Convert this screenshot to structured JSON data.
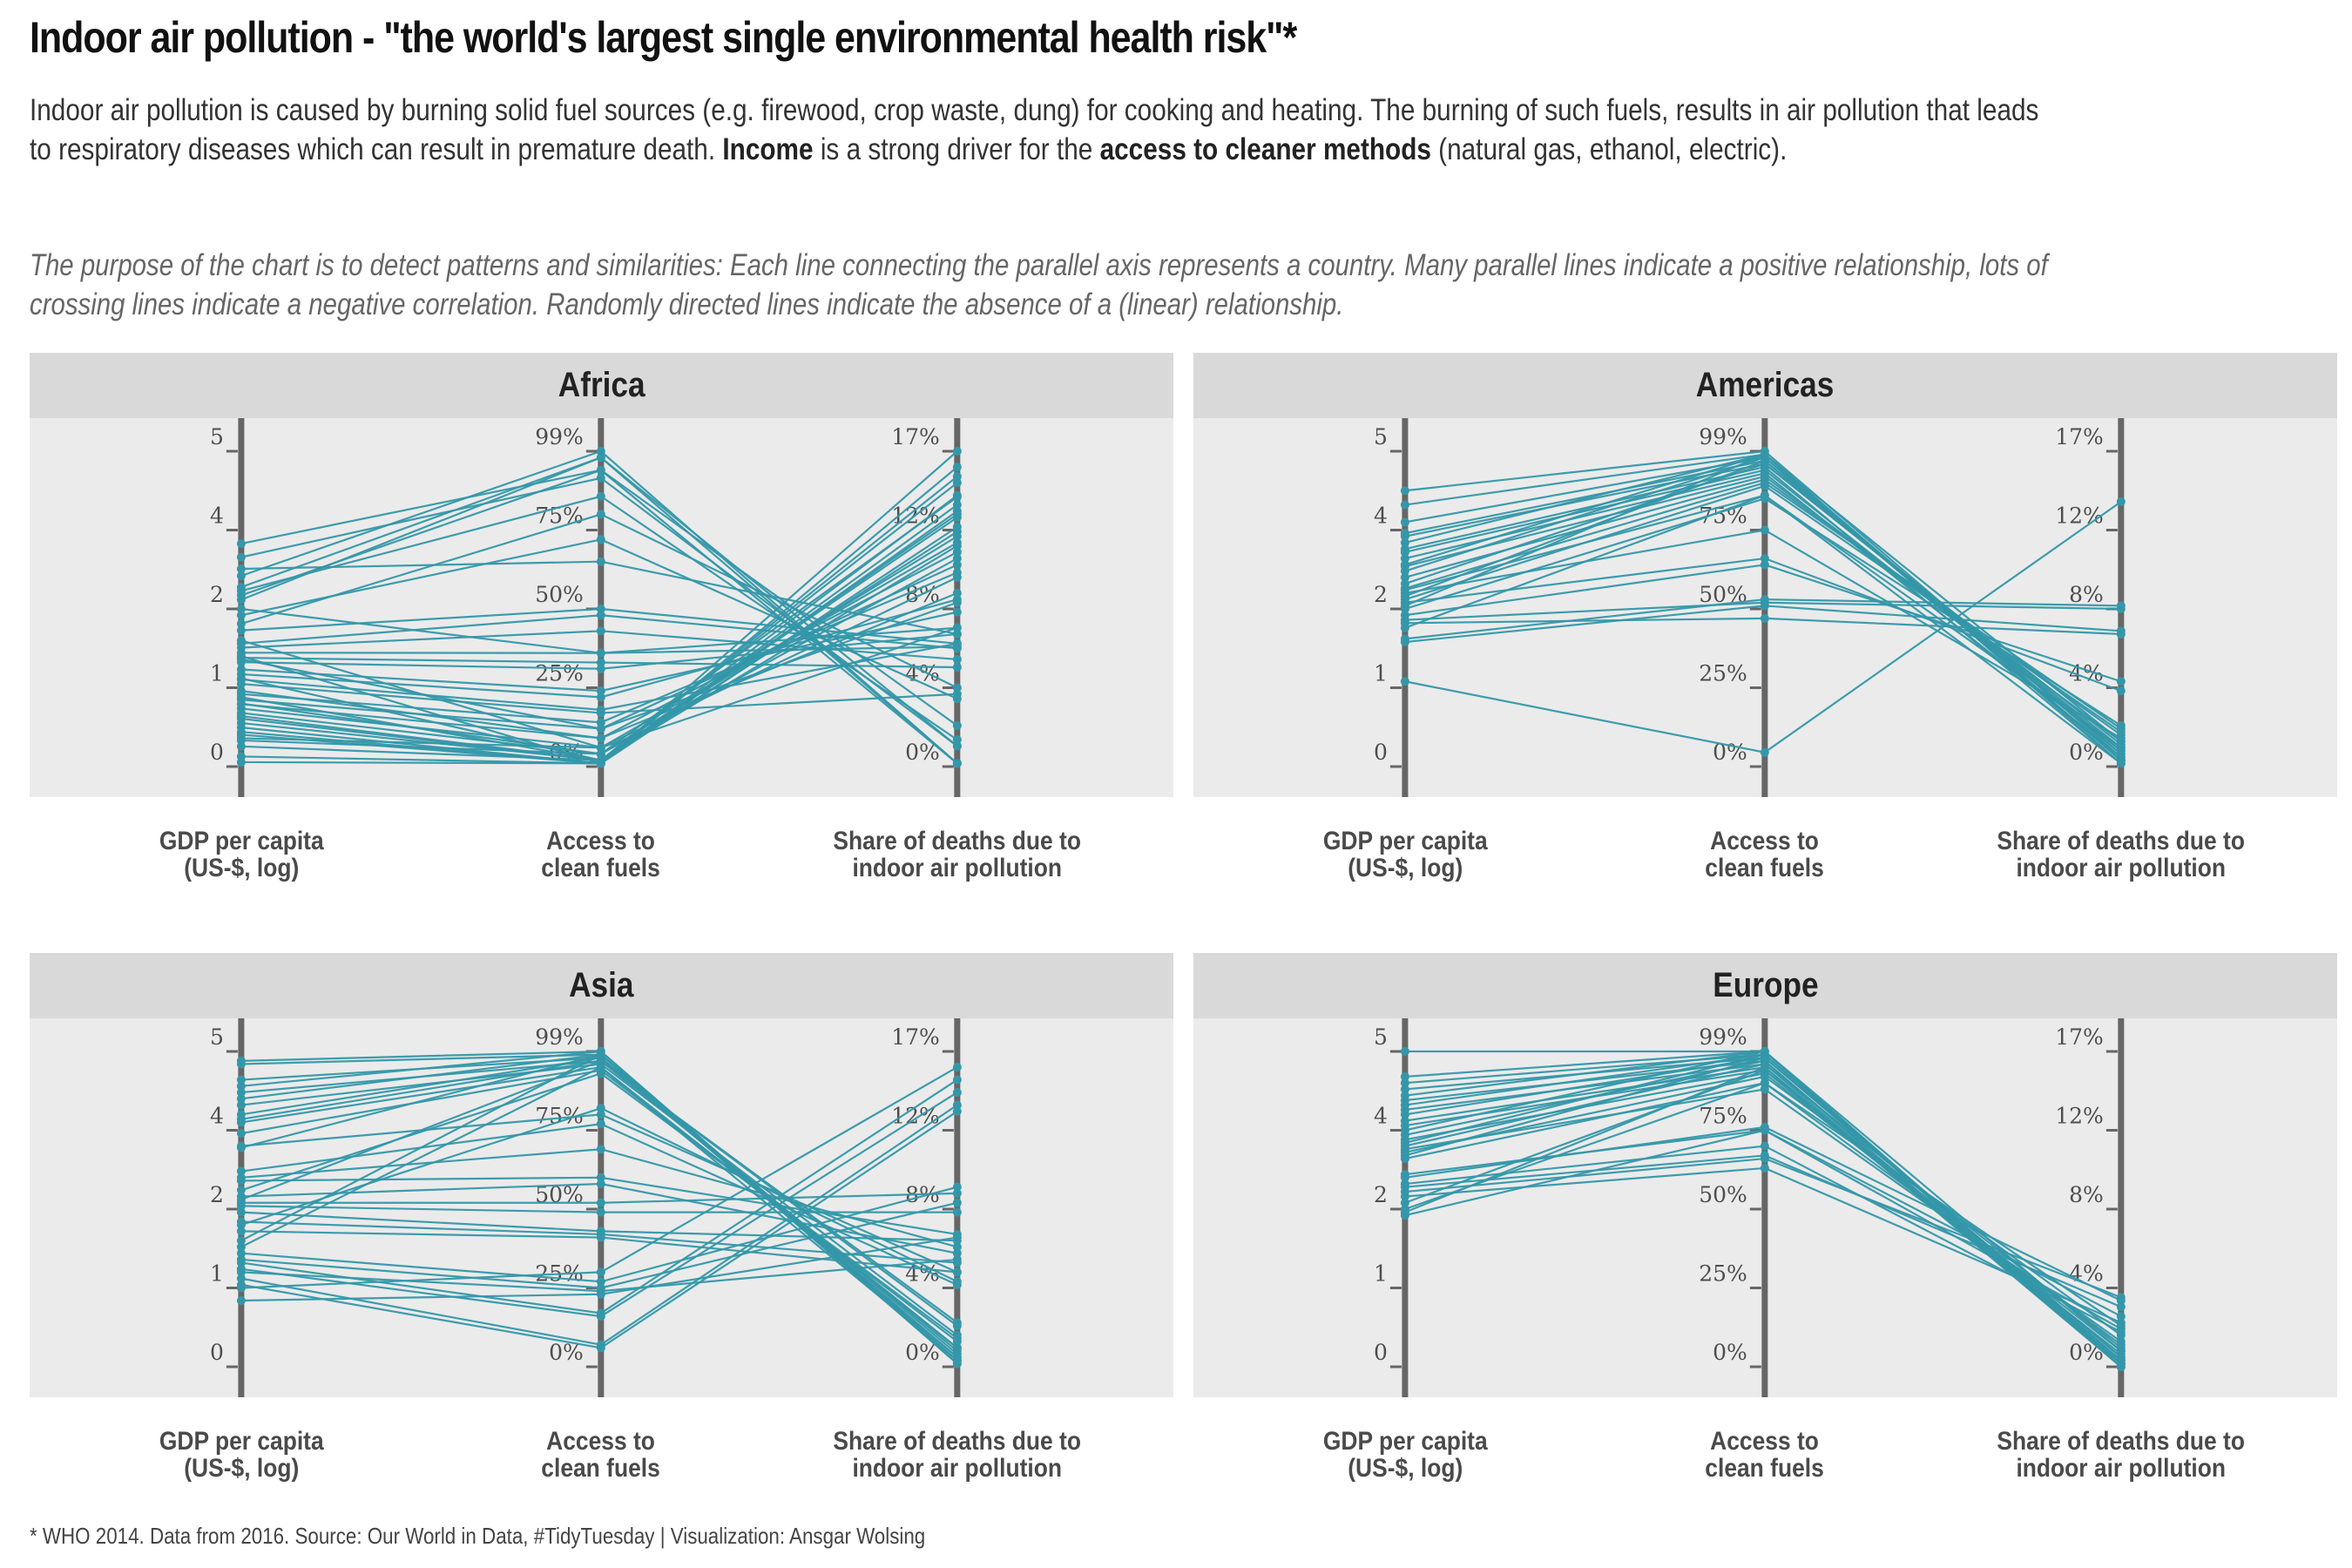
{
  "header": {
    "title": "Indoor air pollution - \"the world's largest single environmental health risk\"*",
    "subtitle_parts": [
      {
        "text": "Indoor air pollution is caused by burning solid fuel sources (e.g. firewood, crop waste, dung) for cooking and heating. The burning of such fuels, results in air pollution that leads to respiratory diseases which can result in premature death. ",
        "bold": false
      },
      {
        "text": "Income",
        "bold": true
      },
      {
        "text": " is a strong driver for the ",
        "bold": false
      },
      {
        "text": "access to cleaner methods",
        "bold": true
      },
      {
        "text": " (natural gas, ethanol, electric).",
        "bold": false
      }
    ],
    "note": "The purpose of the chart is to detect patterns and similarities: Each line connecting the parallel axis represents a country. Many parallel lines indicate a positive relationship, lots of crossing lines indicate a negative correlation. Randomly directed lines indicate the absence of a (linear) relationship."
  },
  "footer": "* WHO 2014. Data from 2016. Source: Our World in Data, #TidyTuesday | Visualization: Ansgar Wolsing",
  "colors": {
    "line": "#3497a9",
    "axis": "#666666",
    "panel_bg": "#ebebeb",
    "strip_bg": "#d9d9d9"
  },
  "chart_data": {
    "type": "parallel-coordinates",
    "title": "Indoor air pollution - \"the world's largest single environmental health risk\"*",
    "value_scale": "normalized 0-1 per axis (0 = bottom tick, 1 = top tick)",
    "axes": [
      {
        "key": "gdp",
        "label": "GDP per capita\n(US-$, log)",
        "tick_labels": [
          "0",
          "1",
          "2",
          "4",
          "5"
        ]
      },
      {
        "key": "access",
        "label": "Access to\nclean fuels",
        "tick_labels": [
          "0%",
          "25%",
          "50%",
          "75%",
          "99%"
        ]
      },
      {
        "key": "deaths",
        "label": "Share of deaths due to\nindoor air pollution",
        "tick_labels": [
          "0%",
          "4%",
          "8%",
          "12%",
          "17%"
        ]
      }
    ],
    "tick_positions": [
      0,
      0.25,
      0.5,
      0.75,
      1
    ],
    "grid": false,
    "legend": "none",
    "panels": [
      {
        "name": "Africa",
        "countries": [
          [
            0.707,
            0.94,
            0.13
          ],
          [
            0.664,
            0.915,
            0.065
          ],
          [
            0.627,
            0.65,
            0.42
          ],
          [
            0.605,
            1.0,
            0.01
          ],
          [
            0.569,
            0.98,
            0.01
          ],
          [
            0.557,
            0.857,
            0.085
          ],
          [
            0.543,
            0.94,
            0.01
          ],
          [
            0.529,
            0.98,
            0.065
          ],
          [
            0.48,
            0.72,
            0.215
          ],
          [
            0.453,
            0.8,
            0.25
          ],
          [
            0.432,
            0.5,
            0.39
          ],
          [
            0.39,
            0.48,
            0.375
          ],
          [
            0.377,
            0.43,
            0.34
          ],
          [
            0.361,
            0.36,
            0.44
          ],
          [
            0.345,
            0.33,
            0.315
          ],
          [
            0.331,
            0.31,
            0.42
          ],
          [
            0.308,
            0.24,
            0.49
          ],
          [
            0.293,
            0.22,
            0.53
          ],
          [
            0.276,
            0.18,
            0.39
          ],
          [
            0.262,
            0.17,
            0.23
          ],
          [
            0.23,
            0.14,
            0.615
          ],
          [
            0.212,
            0.12,
            0.64
          ],
          [
            0.198,
            0.09,
            0.68
          ],
          [
            0.184,
            0.06,
            0.71
          ],
          [
            0.17,
            0.04,
            0.73
          ],
          [
            0.152,
            0.02,
            0.745
          ],
          [
            0.138,
            0.02,
            0.79
          ],
          [
            0.124,
            0.01,
            0.81
          ],
          [
            0.101,
            0.01,
            0.83
          ],
          [
            0.083,
            0.04,
            0.855
          ],
          [
            0.064,
            0.02,
            0.92
          ],
          [
            0.032,
            0.01,
            0.95
          ],
          [
            0.014,
            0.01,
            1.0
          ],
          [
            0.2,
            0.04,
            0.66
          ],
          [
            0.16,
            0.02,
            0.7
          ],
          [
            0.11,
            0.01,
            0.76
          ],
          [
            0.09,
            0.06,
            0.6
          ],
          [
            0.24,
            0.09,
            0.55
          ],
          [
            0.34,
            0.12,
            0.52
          ],
          [
            0.28,
            0.02,
            0.8
          ],
          [
            0.4,
            0.06,
            0.44
          ],
          [
            0.5,
            0.36,
            0.38
          ],
          [
            0.35,
            0.01,
            0.86
          ],
          [
            0.22,
            0.02,
            0.9
          ]
        ]
      },
      {
        "name": "Americas",
        "countries": [
          [
            0.875,
            1.0,
            0.03
          ],
          [
            0.83,
            0.99,
            0.01
          ],
          [
            0.775,
            0.98,
            0.02
          ],
          [
            0.74,
            0.97,
            0.04
          ],
          [
            0.73,
            0.96,
            0.06
          ],
          [
            0.71,
            0.99,
            0.02
          ],
          [
            0.69,
            0.95,
            0.01
          ],
          [
            0.68,
            0.94,
            0.05
          ],
          [
            0.66,
            0.93,
            0.03
          ],
          [
            0.64,
            0.99,
            0.02
          ],
          [
            0.635,
            0.92,
            0.08
          ],
          [
            0.62,
            0.98,
            0.04
          ],
          [
            0.6,
            0.91,
            0.1
          ],
          [
            0.58,
            0.96,
            0.07
          ],
          [
            0.565,
            0.9,
            0.12
          ],
          [
            0.56,
            0.86,
            0.06
          ],
          [
            0.55,
            0.75,
            0.09
          ],
          [
            0.54,
            0.97,
            0.05
          ],
          [
            0.53,
            0.89,
            0.11
          ],
          [
            0.52,
            0.66,
            0.24
          ],
          [
            0.51,
            0.99,
            0.08
          ],
          [
            0.5,
            0.85,
            0.13
          ],
          [
            0.48,
            0.64,
            0.27
          ],
          [
            0.465,
            0.52,
            0.5
          ],
          [
            0.455,
            0.47,
            0.42
          ],
          [
            0.44,
            0.86,
            0.01
          ],
          [
            0.405,
            0.53,
            0.51
          ],
          [
            0.395,
            0.51,
            0.43
          ],
          [
            0.27,
            0.045,
            0.84
          ]
        ]
      },
      {
        "name": "Asia",
        "countries": [
          [
            0.97,
            1.0,
            0.01
          ],
          [
            0.96,
            0.99,
            0.02
          ],
          [
            0.91,
            0.98,
            0.03
          ],
          [
            0.89,
            1.0,
            0.02
          ],
          [
            0.87,
            0.97,
            0.06
          ],
          [
            0.85,
            0.99,
            0.01
          ],
          [
            0.83,
            0.96,
            0.1
          ],
          [
            0.8,
            0.98,
            0.05
          ],
          [
            0.785,
            0.97,
            0.13
          ],
          [
            0.775,
            0.95,
            0.02
          ],
          [
            0.74,
            0.94,
            0.08
          ],
          [
            0.7,
            0.8,
            0.3
          ],
          [
            0.695,
            0.99,
            0.04
          ],
          [
            0.62,
            0.77,
            0.26
          ],
          [
            0.6,
            0.69,
            0.38
          ],
          [
            0.59,
            0.6,
            0.42
          ],
          [
            0.56,
            0.93,
            0.09
          ],
          [
            0.54,
            0.58,
            0.36
          ],
          [
            0.53,
            0.97,
            0.14
          ],
          [
            0.52,
            0.52,
            0.55
          ],
          [
            0.51,
            0.49,
            0.49
          ],
          [
            0.49,
            0.43,
            0.4
          ],
          [
            0.46,
            0.42,
            0.33
          ],
          [
            0.45,
            0.82,
            0.27
          ],
          [
            0.43,
            0.41,
            0.3
          ],
          [
            0.4,
            0.99,
            0.03
          ],
          [
            0.38,
            0.95,
            0.06
          ],
          [
            0.36,
            0.27,
            0.57
          ],
          [
            0.34,
            0.25,
            0.52
          ],
          [
            0.33,
            0.17,
            0.91
          ],
          [
            0.31,
            0.16,
            0.87
          ],
          [
            0.3,
            0.24,
            0.34
          ],
          [
            0.28,
            0.07,
            0.83
          ],
          [
            0.26,
            0.06,
            0.81
          ],
          [
            0.25,
            0.3,
            0.95
          ],
          [
            0.21,
            0.23,
            0.41
          ]
        ]
      },
      {
        "name": "Europe",
        "countries": [
          [
            1.0,
            1.0,
            0.01
          ],
          [
            0.92,
            1.0,
            0.0
          ],
          [
            0.9,
            0.99,
            0.01
          ],
          [
            0.88,
            0.98,
            0.02
          ],
          [
            0.86,
            1.0,
            0.0
          ],
          [
            0.845,
            0.97,
            0.01
          ],
          [
            0.83,
            0.99,
            0.02
          ],
          [
            0.815,
            0.96,
            0.0
          ],
          [
            0.8,
            0.98,
            0.03
          ],
          [
            0.78,
            0.95,
            0.01
          ],
          [
            0.765,
            0.94,
            0.02
          ],
          [
            0.75,
            1.0,
            0.05
          ],
          [
            0.735,
            0.97,
            0.0
          ],
          [
            0.72,
            0.93,
            0.04
          ],
          [
            0.71,
            0.99,
            0.01
          ],
          [
            0.7,
            0.96,
            0.06
          ],
          [
            0.69,
            0.88,
            0.08
          ],
          [
            0.68,
            0.92,
            0.1
          ],
          [
            0.67,
            0.98,
            0.03
          ],
          [
            0.66,
            0.9,
            0.13
          ],
          [
            0.61,
            0.75,
            0.16
          ],
          [
            0.6,
            0.76,
            0.21
          ],
          [
            0.58,
            0.7,
            0.11
          ],
          [
            0.57,
            0.67,
            0.19
          ],
          [
            0.555,
            0.66,
            0.22
          ],
          [
            0.54,
            0.63,
            0.14
          ],
          [
            0.52,
            0.94,
            0.05
          ],
          [
            0.5,
            0.9,
            0.07
          ],
          [
            0.49,
            0.95,
            0.0
          ],
          [
            0.48,
            0.75,
            0.12
          ]
        ]
      }
    ]
  }
}
